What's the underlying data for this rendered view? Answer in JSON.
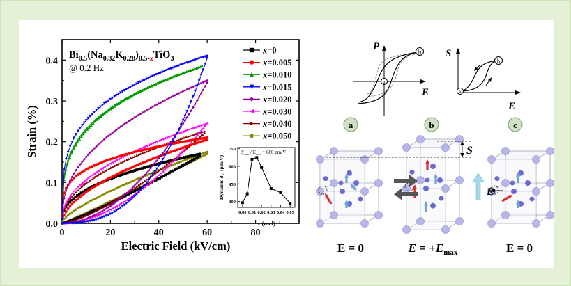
{
  "chart_data": [
    {
      "type": "line",
      "xlabel": "Electric Field (kV/cm)",
      "ylabel": "Strain (%)",
      "xlim": [
        0,
        98
      ],
      "ylim": [
        0,
        0.45
      ],
      "x_ticks": [
        "0",
        "20",
        "40",
        "60",
        "80"
      ],
      "x_tick_values": [
        0,
        20,
        40,
        60,
        80
      ],
      "y_ticks": [
        "0.0",
        "0.1",
        "0.2",
        "0.3",
        "0.4"
      ],
      "y_tick_values": [
        0,
        0.1,
        0.2,
        0.3,
        0.4
      ],
      "annotation": {
        "formula_parts": [
          "Bi",
          "0.5",
          "(Na",
          "0.82",
          "K",
          "0.28",
          ")",
          "0.5-",
          "x",
          "TiO",
          "3"
        ],
        "frequency": "@ 0.2 Hz"
      },
      "legend_position": "right",
      "series": [
        {
          "label": "x=0",
          "color": "#000000",
          "marker": "square",
          "max_x": 57,
          "up_peak": 0.165,
          "down_peak": 0.17,
          "up_shape": 1.15,
          "down_shape": 0.45,
          "remanent": 0.008
        },
        {
          "label": "x=0.005",
          "color": "#ff0000",
          "marker": "circle",
          "max_x": 60,
          "up_peak": 0.205,
          "down_peak": 0.21,
          "up_shape": 0.55,
          "down_shape": 0.3,
          "remanent": 0.022
        },
        {
          "label": "x=0.010",
          "color": "#009900",
          "marker": "triangle-up",
          "max_x": 58,
          "up_peak": 0.385,
          "down_peak": 0.385,
          "up_shape": 0.3,
          "down_shape": 0.3,
          "remanent": 0.01
        },
        {
          "label": "x=0.015",
          "color": "#0000ff",
          "marker": "triangle-down",
          "max_x": 60,
          "up_peak": 0.405,
          "down_peak": 0.41,
          "up_shape": 2.6,
          "down_shape": 0.28,
          "remanent": 0.01
        },
        {
          "label": "x=0.020",
          "color": "#990099",
          "marker": "diamond",
          "max_x": 60,
          "up_peak": 0.345,
          "down_peak": 0.35,
          "up_shape": 1.9,
          "down_shape": 0.45,
          "remanent": 0.012
        },
        {
          "label": "x=0.030",
          "color": "#ff00ff",
          "marker": "triangle-left",
          "max_x": 60,
          "up_peak": 0.245,
          "down_peak": 0.245,
          "up_shape": 1.8,
          "down_shape": 0.5,
          "remanent": 0.012
        },
        {
          "label": "x=0.040",
          "color": "#880000",
          "marker": "triangle-right",
          "max_x": 59,
          "up_peak": 0.22,
          "down_peak": 0.225,
          "up_shape": 1.4,
          "down_shape": 0.5,
          "remanent": 0.008
        },
        {
          "label": "x=0.050",
          "color": "#888800",
          "marker": "hexagon",
          "max_x": 60,
          "up_peak": 0.17,
          "down_peak": 0.175,
          "up_shape": 1.05,
          "down_shape": 0.75,
          "remanent": 0.004
        }
      ]
    },
    {
      "type": "line",
      "xlabel": "x (mol)",
      "ylabel_parts": [
        "Dynamic ",
        "d",
        "33",
        " (pm/V)"
      ],
      "annotation_parts": [
        "S",
        "max",
        " / E",
        "max",
        " ~ 680 pm/V"
      ],
      "xlim": [
        -0.005,
        0.055
      ],
      "ylim": [
        250,
        760
      ],
      "x_ticks": [
        "0.00",
        "0.01",
        "0.02",
        "0.03",
        "0.04",
        "0.05"
      ],
      "x_tick_values": [
        0,
        0.01,
        0.02,
        0.03,
        0.04,
        0.05
      ],
      "y_ticks": [
        "300",
        "450",
        "600",
        "750"
      ],
      "y_tick_values": [
        300,
        450,
        600,
        750
      ],
      "x": [
        0,
        0.005,
        0.01,
        0.015,
        0.02,
        0.03,
        0.04,
        0.05
      ],
      "values": [
        290,
        365,
        660,
        675,
        590,
        410,
        375,
        285
      ],
      "color": "#000000"
    }
  ],
  "schematic": {
    "p_label": "P",
    "e_label": "E",
    "s_label": "S",
    "point_a": "a",
    "point_b": "b",
    "point_c": "c",
    "state_a_label": "E = 0",
    "state_b_label_parts": [
      "E",
      " = +",
      "E",
      "max"
    ],
    "state_c_label": "E = 0",
    "strain_label": "S",
    "field_label": "E",
    "lattice_color": "#b8b8e8",
    "ion_color": "#6a6acf",
    "arrow_field_color": "#a3d9e8",
    "dipole_color": "#d83030"
  }
}
